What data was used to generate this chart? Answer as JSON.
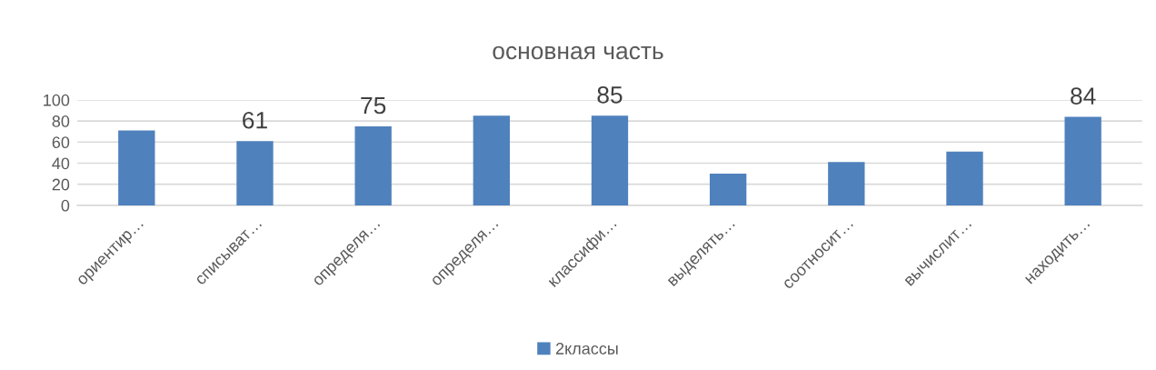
{
  "chart_data": {
    "type": "bar",
    "title": "основная часть",
    "categories": [
      "ориентир…",
      "списыват…",
      "определя…",
      "определя…",
      "классифи…",
      "выделять…",
      "соотносит…",
      "вычислит…",
      "находить…"
    ],
    "series": [
      {
        "name": "2классы",
        "color": "#4f81bd",
        "values": [
          71,
          61,
          75,
          85,
          85,
          30,
          41,
          51,
          84
        ],
        "value_labels": [
          null,
          "61",
          "75",
          null,
          "85",
          null,
          null,
          null,
          "84"
        ]
      }
    ],
    "ylim": [
      0,
      100
    ],
    "yticks": [
      0,
      20,
      40,
      60,
      80,
      100
    ],
    "grid": "y",
    "legend": "bottom"
  }
}
